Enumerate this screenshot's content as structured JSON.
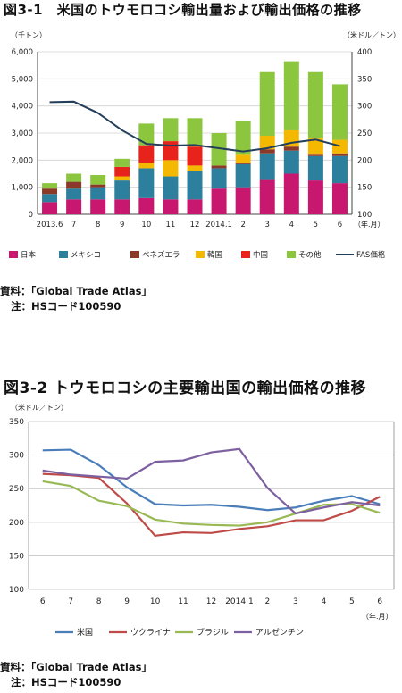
{
  "figure1": {
    "title": "図3-1　米国のトウモロコシ輸出量および輸出価格の推移",
    "source": "資料：「Global Trade Atlas」",
    "note": "注：HSコード100590"
  },
  "figure2": {
    "title": "図3-2 トウモロコシの主要輸出国の輸出価格の推移",
    "source": "資料：「Global Trade Atlas」",
    "note": "注：HSコード100590"
  },
  "chart_data": [
    {
      "type": "bar",
      "stacked": true,
      "categories": [
        "2013.6",
        "7",
        "8",
        "9",
        "10",
        "11",
        "12",
        "2014.1",
        "2",
        "3",
        "4",
        "5",
        "6"
      ],
      "x_unit": "（年.月）",
      "ylabel_left": "（千トン）",
      "ylabel_right": "（米ドル／トン）",
      "ylim_left": [
        0,
        6000
      ],
      "yticks_left": [
        "0",
        "1,000",
        "2,000",
        "3,000",
        "4,000",
        "5,000",
        "6,000"
      ],
      "ylim_right": [
        100,
        400
      ],
      "yticks_right": [
        "100",
        "150",
        "200",
        "250",
        "300",
        "350",
        "400"
      ],
      "series": [
        {
          "name": "日本",
          "color": "#c8176e",
          "values": [
            450,
            550,
            550,
            550,
            600,
            550,
            550,
            950,
            1000,
            1300,
            1500,
            1250,
            1150
          ]
        },
        {
          "name": "メキシコ",
          "color": "#2d7f9e",
          "values": [
            300,
            400,
            450,
            700,
            1100,
            850,
            1050,
            750,
            850,
            950,
            850,
            900,
            1000
          ]
        },
        {
          "name": "ベネズエラ",
          "color": "#8b3a2a",
          "values": [
            200,
            250,
            100,
            0,
            0,
            0,
            0,
            100,
            50,
            150,
            150,
            50,
            100
          ]
        },
        {
          "name": "韓国",
          "color": "#f5b800",
          "values": [
            0,
            0,
            0,
            150,
            200,
            600,
            200,
            0,
            300,
            500,
            600,
            600,
            500
          ]
        },
        {
          "name": "中国",
          "color": "#e8231b",
          "values": [
            0,
            0,
            0,
            350,
            650,
            700,
            700,
            0,
            0,
            0,
            0,
            0,
            0
          ]
        },
        {
          "name": "その他",
          "color": "#8cc63f",
          "values": [
            200,
            300,
            350,
            300,
            800,
            850,
            1050,
            1200,
            1250,
            2350,
            2550,
            2450,
            2050
          ]
        }
      ],
      "line": {
        "name": "FAS価格",
        "color": "#243f5c",
        "axis": "right",
        "values": [
          307,
          308,
          287,
          255,
          230,
          227,
          228,
          222,
          216,
          222,
          232,
          238,
          226
        ]
      },
      "grid": true,
      "legend": "bottom"
    },
    {
      "type": "line",
      "categories": [
        "6",
        "7",
        "8",
        "9",
        "10",
        "11",
        "12",
        "2014.1",
        "2",
        "3",
        "4",
        "5",
        "6"
      ],
      "x_unit": "（年.月）",
      "ylabel": "（米ドル／トン）",
      "ylim": [
        100,
        350
      ],
      "yticks": [
        "100",
        "150",
        "200",
        "250",
        "300",
        "350"
      ],
      "series": [
        {
          "name": "米国",
          "color": "#4a7ebb",
          "values": [
            307,
            308,
            285,
            252,
            227,
            225,
            226,
            223,
            218,
            222,
            232,
            239,
            227
          ]
        },
        {
          "name": "ウクライナ",
          "color": "#be4b48",
          "values": [
            272,
            270,
            266,
            228,
            180,
            185,
            184,
            190,
            194,
            203,
            203,
            217,
            238
          ]
        },
        {
          "name": "ブラジル",
          "color": "#98b954",
          "values": [
            261,
            254,
            232,
            224,
            204,
            198,
            196,
            195,
            200,
            213,
            226,
            227,
            214
          ]
        },
        {
          "name": "アルゼンチン",
          "color": "#7d60a0",
          "values": [
            277,
            271,
            268,
            265,
            290,
            292,
            304,
            309,
            251,
            213,
            222,
            230,
            225
          ]
        }
      ],
      "grid": true,
      "legend": "bottom"
    }
  ]
}
